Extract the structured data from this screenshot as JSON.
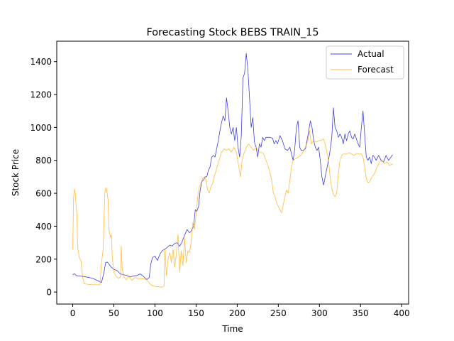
{
  "chart_data": {
    "type": "line",
    "title": "Forecasting Stock BEBS TRAIN_15",
    "xlabel": "Time",
    "ylabel": "Stock Price",
    "xlim": [
      -19.45,
      408.45
    ],
    "ylim": [
      -73,
      1524
    ],
    "x_ticks": [
      0,
      50,
      100,
      150,
      200,
      250,
      300,
      350,
      400
    ],
    "y_ticks": [
      0,
      200,
      400,
      600,
      800,
      1000,
      1200,
      1400
    ],
    "grid": false,
    "legend_position": "top-right",
    "series": [
      {
        "name": "Actual",
        "color": "#0000cc",
        "points": [
          [
            0,
            105
          ],
          [
            2,
            112
          ],
          [
            4,
            100
          ],
          [
            8,
            98
          ],
          [
            14,
            94
          ],
          [
            20,
            88
          ],
          [
            25,
            82
          ],
          [
            30,
            70
          ],
          [
            35,
            58
          ],
          [
            38,
            120
          ],
          [
            40,
            178
          ],
          [
            42,
            182
          ],
          [
            44,
            170
          ],
          [
            47,
            150
          ],
          [
            50,
            138
          ],
          [
            54,
            130
          ],
          [
            58,
            110
          ],
          [
            62,
            105
          ],
          [
            66,
            100
          ],
          [
            70,
            92
          ],
          [
            74,
            98
          ],
          [
            78,
            100
          ],
          [
            82,
            110
          ],
          [
            86,
            95
          ],
          [
            90,
            76
          ],
          [
            93,
            88
          ],
          [
            95,
            172
          ],
          [
            97,
            210
          ],
          [
            100,
            218
          ],
          [
            103,
            192
          ],
          [
            106,
            230
          ],
          [
            109,
            252
          ],
          [
            112,
            260
          ],
          [
            115,
            272
          ],
          [
            118,
            285
          ],
          [
            121,
            280
          ],
          [
            124,
            295
          ],
          [
            127,
            300
          ],
          [
            130,
            278
          ],
          [
            133,
            305
          ],
          [
            136,
            345
          ],
          [
            139,
            380
          ],
          [
            142,
            360
          ],
          [
            144,
            370
          ],
          [
            147,
            400
          ],
          [
            149,
            500
          ],
          [
            151,
            490
          ],
          [
            153,
            520
          ],
          [
            155,
            620
          ],
          [
            157,
            672
          ],
          [
            159,
            680
          ],
          [
            161,
            700
          ],
          [
            163,
            700
          ],
          [
            165,
            740
          ],
          [
            167,
            760
          ],
          [
            169,
            820
          ],
          [
            171,
            830
          ],
          [
            173,
            820
          ],
          [
            175,
            870
          ],
          [
            177,
            920
          ],
          [
            179,
            980
          ],
          [
            181,
            1030
          ],
          [
            183,
            1070
          ],
          [
            185,
            1040
          ],
          [
            187,
            1180
          ],
          [
            189,
            1100
          ],
          [
            191,
            1000
          ],
          [
            193,
            960
          ],
          [
            195,
            1000
          ],
          [
            197,
            920
          ],
          [
            199,
            1000
          ],
          [
            201,
            880
          ],
          [
            203,
            820
          ],
          [
            205,
            950
          ],
          [
            207,
            1300
          ],
          [
            209,
            1330
          ],
          [
            211,
            1450
          ],
          [
            213,
            1350
          ],
          [
            215,
            1180
          ],
          [
            217,
            1000
          ],
          [
            219,
            1060
          ],
          [
            221,
            910
          ],
          [
            223,
            880
          ],
          [
            225,
            820
          ],
          [
            227,
            900
          ],
          [
            229,
            880
          ],
          [
            231,
            940
          ],
          [
            233,
            920
          ],
          [
            235,
            940
          ],
          [
            240,
            940
          ],
          [
            243,
            935
          ],
          [
            245,
            900
          ],
          [
            247,
            920
          ],
          [
            249,
            900
          ],
          [
            252,
            950
          ],
          [
            255,
            920
          ],
          [
            258,
            870
          ],
          [
            261,
            860
          ],
          [
            264,
            880
          ],
          [
            266,
            840
          ],
          [
            268,
            800
          ],
          [
            270,
            870
          ],
          [
            272,
            1000
          ],
          [
            274,
            1040
          ],
          [
            276,
            880
          ],
          [
            278,
            860
          ],
          [
            280,
            860
          ],
          [
            283,
            870
          ],
          [
            286,
            950
          ],
          [
            289,
            1040
          ],
          [
            291,
            1000
          ],
          [
            293,
            920
          ],
          [
            295,
            880
          ],
          [
            297,
            860
          ],
          [
            299,
            880
          ],
          [
            301,
            800
          ],
          [
            303,
            700
          ],
          [
            305,
            650
          ],
          [
            307,
            700
          ],
          [
            309,
            750
          ],
          [
            311,
            800
          ],
          [
            313,
            860
          ],
          [
            315,
            940
          ],
          [
            317,
            1120
          ],
          [
            319,
            1000
          ],
          [
            321,
            980
          ],
          [
            323,
            940
          ],
          [
            325,
            960
          ],
          [
            327,
            940
          ],
          [
            329,
            900
          ],
          [
            331,
            960
          ],
          [
            333,
            920
          ],
          [
            335,
            960
          ],
          [
            337,
            980
          ],
          [
            339,
            940
          ],
          [
            341,
            930
          ],
          [
            343,
            960
          ],
          [
            345,
            930
          ],
          [
            347,
            900
          ],
          [
            349,
            880
          ],
          [
            351,
            1000
          ],
          [
            353,
            1100
          ],
          [
            355,
            960
          ],
          [
            357,
            820
          ],
          [
            359,
            800
          ],
          [
            361,
            820
          ],
          [
            363,
            780
          ],
          [
            365,
            830
          ],
          [
            367,
            820
          ],
          [
            369,
            800
          ],
          [
            372,
            830
          ],
          [
            375,
            800
          ],
          [
            378,
            790
          ],
          [
            381,
            830
          ],
          [
            384,
            800
          ],
          [
            387,
            820
          ],
          [
            389,
            835
          ]
        ]
      },
      {
        "name": "Forecast",
        "color": "#ffa500",
        "points": [
          [
            0,
            260
          ],
          [
            1,
            570
          ],
          [
            2,
            625
          ],
          [
            3,
            600
          ],
          [
            4,
            530
          ],
          [
            5,
            480
          ],
          [
            6,
            270
          ],
          [
            8,
            210
          ],
          [
            10,
            190
          ],
          [
            12,
            90
          ],
          [
            14,
            50
          ],
          [
            17,
            48
          ],
          [
            22,
            45
          ],
          [
            28,
            44
          ],
          [
            33,
            44
          ],
          [
            35,
            180
          ],
          [
            37,
            260
          ],
          [
            39,
            600
          ],
          [
            40,
            632
          ],
          [
            41,
            630
          ],
          [
            43,
            560
          ],
          [
            44,
            380
          ],
          [
            46,
            330
          ],
          [
            47,
            350
          ],
          [
            48,
            220
          ],
          [
            50,
            120
          ],
          [
            53,
            95
          ],
          [
            56,
            82
          ],
          [
            58,
            90
          ],
          [
            59,
            280
          ],
          [
            60,
            150
          ],
          [
            62,
            92
          ],
          [
            65,
            75
          ],
          [
            68,
            95
          ],
          [
            72,
            70
          ],
          [
            75,
            88
          ],
          [
            78,
            85
          ],
          [
            80,
            78
          ],
          [
            82,
            80
          ],
          [
            86,
            80
          ],
          [
            90,
            75
          ],
          [
            93,
            55
          ],
          [
            96,
            40
          ],
          [
            100,
            35
          ],
          [
            104,
            32
          ],
          [
            108,
            30
          ],
          [
            111,
            35
          ],
          [
            112,
            255
          ],
          [
            114,
            100
          ],
          [
            116,
            200
          ],
          [
            118,
            240
          ],
          [
            120,
            180
          ],
          [
            122,
            260
          ],
          [
            124,
            150
          ],
          [
            126,
            230
          ],
          [
            128,
            350
          ],
          [
            130,
            120
          ],
          [
            132,
            250
          ],
          [
            134,
            160
          ],
          [
            136,
            330
          ],
          [
            138,
            180
          ],
          [
            140,
            250
          ],
          [
            142,
            240
          ],
          [
            144,
            300
          ],
          [
            146,
            420
          ],
          [
            148,
            380
          ],
          [
            150,
            470
          ],
          [
            152,
            580
          ],
          [
            154,
            640
          ],
          [
            156,
            660
          ],
          [
            158,
            690
          ],
          [
            160,
            700
          ],
          [
            162,
            680
          ],
          [
            164,
            620
          ],
          [
            166,
            600
          ],
          [
            168,
            640
          ],
          [
            170,
            660
          ],
          [
            172,
            700
          ],
          [
            175,
            750
          ],
          [
            178,
            800
          ],
          [
            181,
            850
          ],
          [
            184,
            870
          ],
          [
            187,
            860
          ],
          [
            190,
            870
          ],
          [
            193,
            850
          ],
          [
            196,
            880
          ],
          [
            199,
            850
          ],
          [
            202,
            760
          ],
          [
            204,
            700
          ],
          [
            206,
            800
          ],
          [
            208,
            840
          ],
          [
            211,
            880
          ],
          [
            214,
            900
          ],
          [
            217,
            880
          ],
          [
            220,
            860
          ],
          [
            223,
            880
          ],
          [
            226,
            850
          ],
          [
            229,
            850
          ],
          [
            232,
            840
          ],
          [
            235,
            800
          ],
          [
            238,
            760
          ],
          [
            240,
            720
          ],
          [
            242,
            680
          ],
          [
            244,
            600
          ],
          [
            246,
            580
          ],
          [
            248,
            540
          ],
          [
            250,
            520
          ],
          [
            252,
            500
          ],
          [
            254,
            480
          ],
          [
            256,
            530
          ],
          [
            258,
            580
          ],
          [
            260,
            620
          ],
          [
            262,
            600
          ],
          [
            264,
            680
          ],
          [
            266,
            760
          ],
          [
            268,
            800
          ],
          [
            271,
            810
          ],
          [
            274,
            820
          ],
          [
            277,
            830
          ],
          [
            280,
            850
          ],
          [
            283,
            880
          ],
          [
            286,
            920
          ],
          [
            288,
            980
          ],
          [
            290,
            900
          ],
          [
            293,
            920
          ],
          [
            296,
            910
          ],
          [
            299,
            920
          ],
          [
            302,
            920
          ],
          [
            305,
            930
          ],
          [
            307,
            900
          ],
          [
            309,
            850
          ],
          [
            311,
            800
          ],
          [
            313,
            700
          ],
          [
            315,
            630
          ],
          [
            317,
            590
          ],
          [
            319,
            580
          ],
          [
            321,
            600
          ],
          [
            323,
            720
          ],
          [
            325,
            800
          ],
          [
            327,
            830
          ],
          [
            330,
            840
          ],
          [
            333,
            838
          ],
          [
            336,
            845
          ],
          [
            339,
            840
          ],
          [
            342,
            830
          ],
          [
            345,
            842
          ],
          [
            348,
            838
          ],
          [
            351,
            840
          ],
          [
            353,
            820
          ],
          [
            355,
            760
          ],
          [
            357,
            690
          ],
          [
            359,
            665
          ],
          [
            361,
            670
          ],
          [
            364,
            700
          ],
          [
            367,
            720
          ],
          [
            370,
            760
          ],
          [
            373,
            790
          ],
          [
            376,
            800
          ],
          [
            379,
            780
          ],
          [
            382,
            790
          ],
          [
            385,
            770
          ],
          [
            389,
            778
          ]
        ]
      }
    ]
  }
}
